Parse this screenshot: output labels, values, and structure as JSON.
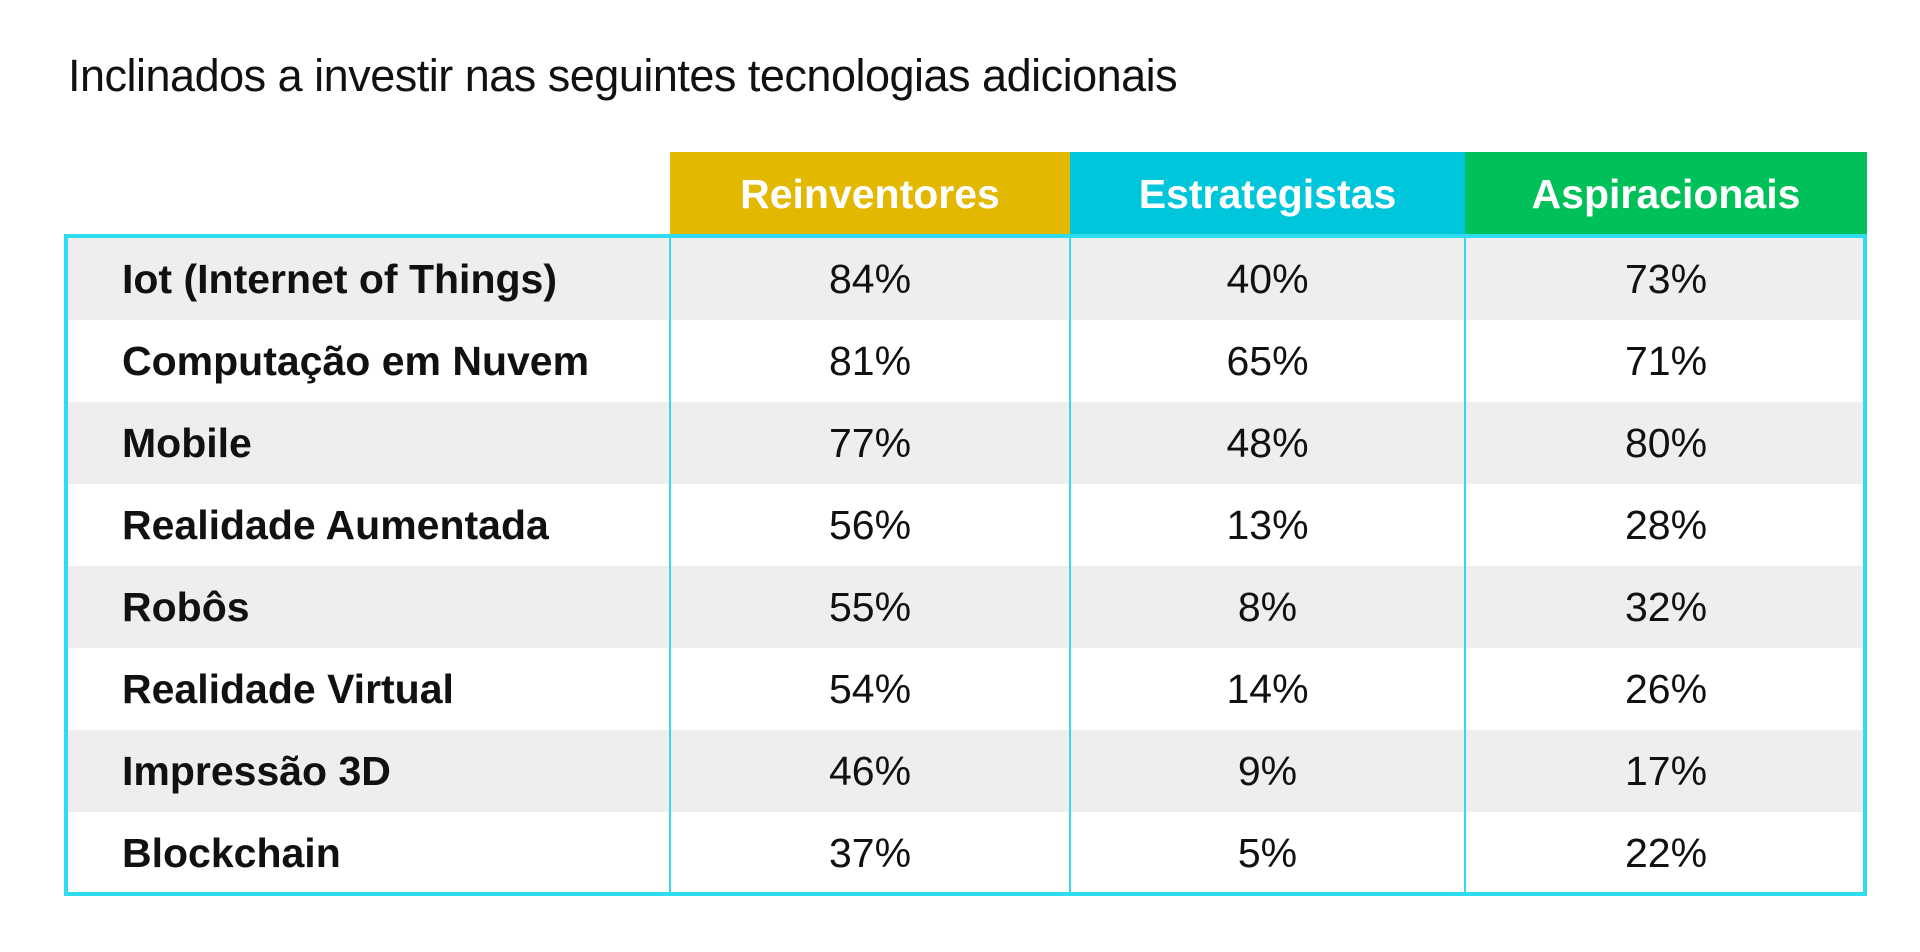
{
  "chart_data": {
    "type": "table",
    "title": "Inclinados a investir nas seguintes tecnologias adicionais",
    "columns": [
      {
        "name": "Reinventores",
        "color": "#e2b800"
      },
      {
        "name": "Estrategistas",
        "color": "#00c6dc"
      },
      {
        "name": "Aspiracionais",
        "color": "#00c05a"
      }
    ],
    "rows": [
      {
        "label": "Iot (Internet of Things)",
        "values": [
          "84%",
          "40%",
          "73%"
        ]
      },
      {
        "label": "Computação em Nuvem",
        "values": [
          "81%",
          "65%",
          "71%"
        ]
      },
      {
        "label": "Mobile",
        "values": [
          "77%",
          "48%",
          "80%"
        ]
      },
      {
        "label": "Realidade Aumentada",
        "values": [
          "56%",
          "13%",
          "28%"
        ]
      },
      {
        "label": "Robôs",
        "values": [
          "55%",
          "8%",
          "32%"
        ]
      },
      {
        "label": "Realidade Virtual",
        "values": [
          "54%",
          "14%",
          "26%"
        ]
      },
      {
        "label": "Impressão 3D",
        "values": [
          "46%",
          "9%",
          "17%"
        ]
      },
      {
        "label": "Blockchain",
        "values": [
          "37%",
          "5%",
          "22%"
        ]
      }
    ],
    "accent_border_color": "#2fdbef",
    "shaded_row_color": "#eeeeee"
  }
}
